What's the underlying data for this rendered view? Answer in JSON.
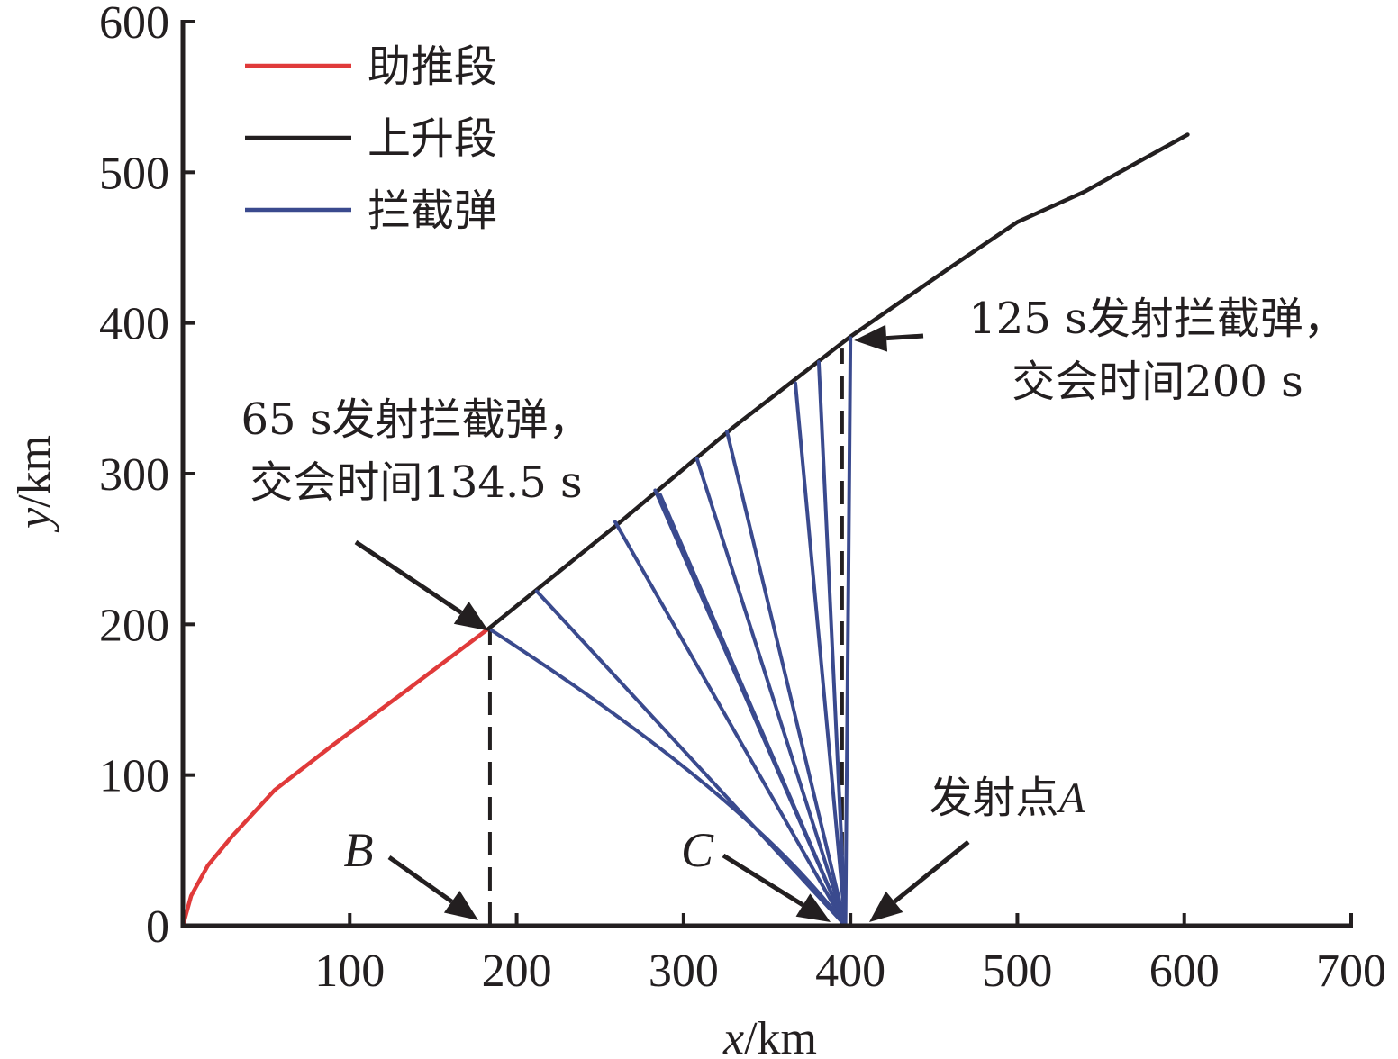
{
  "chart_data": {
    "type": "line",
    "xlabel": "x/km",
    "ylabel": "y/km",
    "xlim": [
      0,
      700
    ],
    "ylim": [
      0,
      600
    ],
    "xticks": [
      100,
      200,
      300,
      400,
      500,
      600,
      700
    ],
    "yticks": [
      0,
      100,
      200,
      300,
      400,
      500,
      600
    ],
    "grid": false,
    "legend_position": "top-left",
    "series": [
      {
        "name": "助推段",
        "color": "#e03a3a",
        "points": [
          [
            0,
            0
          ],
          [
            5,
            20
          ],
          [
            15,
            40
          ],
          [
            30,
            60
          ],
          [
            55,
            90
          ],
          [
            90,
            120
          ],
          [
            135,
            157
          ],
          [
            183,
            197
          ]
        ]
      },
      {
        "name": "上升段",
        "color": "#231f20",
        "points": [
          [
            183,
            197
          ],
          [
            260,
            266
          ],
          [
            330,
            331
          ],
          [
            400,
            391
          ],
          [
            460,
            437
          ],
          [
            500,
            467
          ],
          [
            540,
            487
          ],
          [
            602,
            525
          ]
        ]
      },
      {
        "name": "拦截弹",
        "color": "#3a4a8e",
        "points": []
      }
    ],
    "interceptors": [
      {
        "launch": [
          397,
          0
        ],
        "intercept": [
          185,
          196
        ],
        "bend": [
          340,
          85
        ]
      },
      {
        "launch": [
          397,
          0
        ],
        "intercept": [
          212,
          222
        ]
      },
      {
        "launch": [
          397,
          0
        ],
        "intercept": [
          259,
          268
        ]
      },
      {
        "launch": [
          397,
          0
        ],
        "intercept": [
          283,
          289
        ]
      },
      {
        "launch": [
          397,
          0
        ],
        "intercept": [
          286,
          286
        ]
      },
      {
        "launch": [
          397,
          0
        ],
        "intercept": [
          308,
          310
        ]
      },
      {
        "launch": [
          397,
          0
        ],
        "intercept": [
          326,
          328
        ]
      },
      {
        "launch": [
          397,
          0
        ],
        "intercept": [
          367,
          360
        ]
      },
      {
        "launch": [
          397,
          0
        ],
        "intercept": [
          381,
          374
        ]
      },
      {
        "launch": [
          397,
          0
        ],
        "intercept": [
          400,
          390
        ]
      }
    ],
    "dashed_lines": [
      {
        "from": [
          184,
          0
        ],
        "to": [
          184,
          197
        ]
      },
      {
        "from": [
          395,
          0
        ],
        "to": [
          395,
          383
        ]
      }
    ],
    "annotations": [
      {
        "lines": [
          "65 s发射拦截弹，",
          "交会时间134.5 s"
        ],
        "points_to": [
          183,
          197
        ]
      },
      {
        "lines": [
          "125 s发射拦截弹，",
          "交会时间200 s"
        ],
        "points_to": [
          400,
          388
        ]
      }
    ],
    "point_labels": [
      {
        "text": "B",
        "points_to": [
          177,
          5
        ]
      },
      {
        "text": "C",
        "points_to": [
          387,
          5
        ]
      },
      {
        "text": "发射点A",
        "points_to": [
          408,
          5
        ]
      }
    ]
  }
}
